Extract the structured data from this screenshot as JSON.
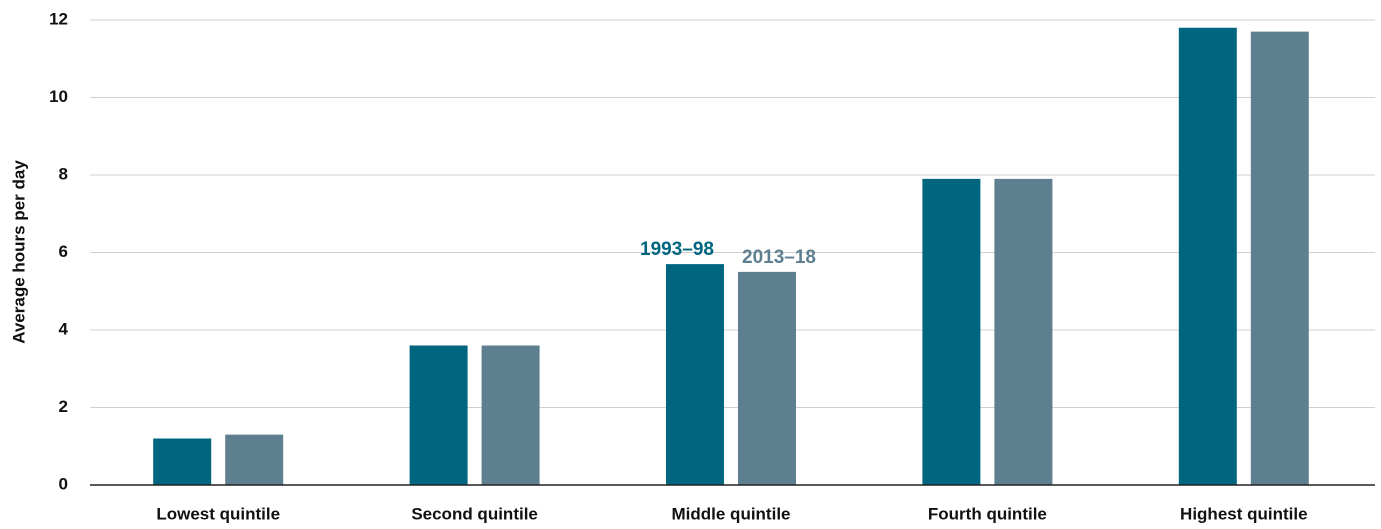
{
  "chart_data": {
    "type": "bar",
    "y_label": "Average hours per day",
    "categories": [
      "Lowest quintile",
      "Second quintile",
      "Middle quintile",
      "Fourth quintile",
      "Highest quintile"
    ],
    "series": [
      {
        "name": "1993–98",
        "color": "#006680",
        "values": [
          1.2,
          3.6,
          5.7,
          7.9,
          11.8
        ]
      },
      {
        "name": "2013–18",
        "color": "#5e7f8f",
        "values": [
          1.3,
          3.6,
          5.5,
          7.9,
          11.7
        ]
      }
    ],
    "ylim": [
      0,
      12
    ],
    "yticks": [
      0,
      2,
      4,
      6,
      8,
      10,
      12
    ],
    "grid": true
  }
}
